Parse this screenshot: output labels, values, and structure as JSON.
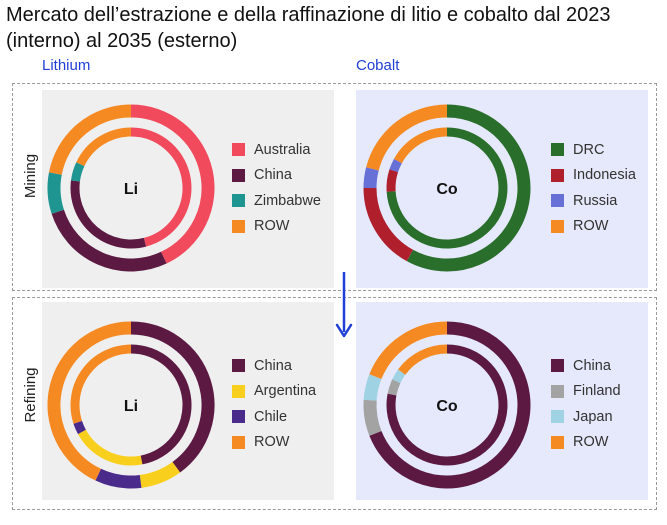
{
  "title": "Mercato dell’estrazione e della raffinazione di litio e cobalto dal 2023 (interno) al 2035 (esterno)",
  "columns": [
    "Lithium",
    "Cobalt"
  ],
  "rows": [
    "Mining",
    "Refining"
  ],
  "colors": {
    "lithium_panel": "#efefef",
    "cobalt_panel": "#e5e9fb",
    "column_label": "#1f3fd6",
    "arrow": "#1f3fd6"
  },
  "chart_data": [
    {
      "type": "donut",
      "panel": "Lithium / Mining",
      "center_label": "Li",
      "series": [
        {
          "name": "Australia",
          "color": "#f04a5c",
          "inner_2023": 46,
          "outer_2035": 43
        },
        {
          "name": "China",
          "color": "#5c1a43",
          "inner_2023": 31,
          "outer_2035": 27
        },
        {
          "name": "Zimbabwe",
          "color": "#1f9591",
          "inner_2023": 5,
          "outer_2035": 8
        },
        {
          "name": "ROW",
          "color": "#f58a22",
          "inner_2023": 18,
          "outer_2035": 22
        }
      ]
    },
    {
      "type": "donut",
      "panel": "Cobalt / Mining",
      "center_label": "Co",
      "series": [
        {
          "name": "DRC",
          "color": "#2a6e2c",
          "inner_2023": 74,
          "outer_2035": 58
        },
        {
          "name": "Indonesia",
          "color": "#b01f2c",
          "inner_2023": 6,
          "outer_2035": 17
        },
        {
          "name": "Russia",
          "color": "#6670d6",
          "inner_2023": 3,
          "outer_2035": 4
        },
        {
          "name": "ROW",
          "color": "#f58a22",
          "inner_2023": 17,
          "outer_2035": 21
        }
      ]
    },
    {
      "type": "donut",
      "panel": "Lithium / Refining",
      "center_label": "Li",
      "series": [
        {
          "name": "China",
          "color": "#5c1a43",
          "inner_2023": 47,
          "outer_2035": 40
        },
        {
          "name": "Argentina",
          "color": "#f9cf1d",
          "inner_2023": 20,
          "outer_2035": 8
        },
        {
          "name": "Chile",
          "color": "#4a2b8c",
          "inner_2023": 3,
          "outer_2035": 9
        },
        {
          "name": "ROW",
          "color": "#f58a22",
          "inner_2023": 30,
          "outer_2035": 43
        }
      ]
    },
    {
      "type": "donut",
      "panel": "Cobalt / Refining",
      "center_label": "Co",
      "series": [
        {
          "name": "China",
          "color": "#5c1a43",
          "inner_2023": 78,
          "outer_2035": 69
        },
        {
          "name": "Finland",
          "color": "#a3a3a3",
          "inner_2023": 4,
          "outer_2035": 7
        },
        {
          "name": "Japan",
          "color": "#9fd3e4",
          "inner_2023": 3,
          "outer_2035": 5
        },
        {
          "name": "ROW",
          "color": "#f58a22",
          "inner_2023": 15,
          "outer_2035": 19
        }
      ]
    }
  ]
}
